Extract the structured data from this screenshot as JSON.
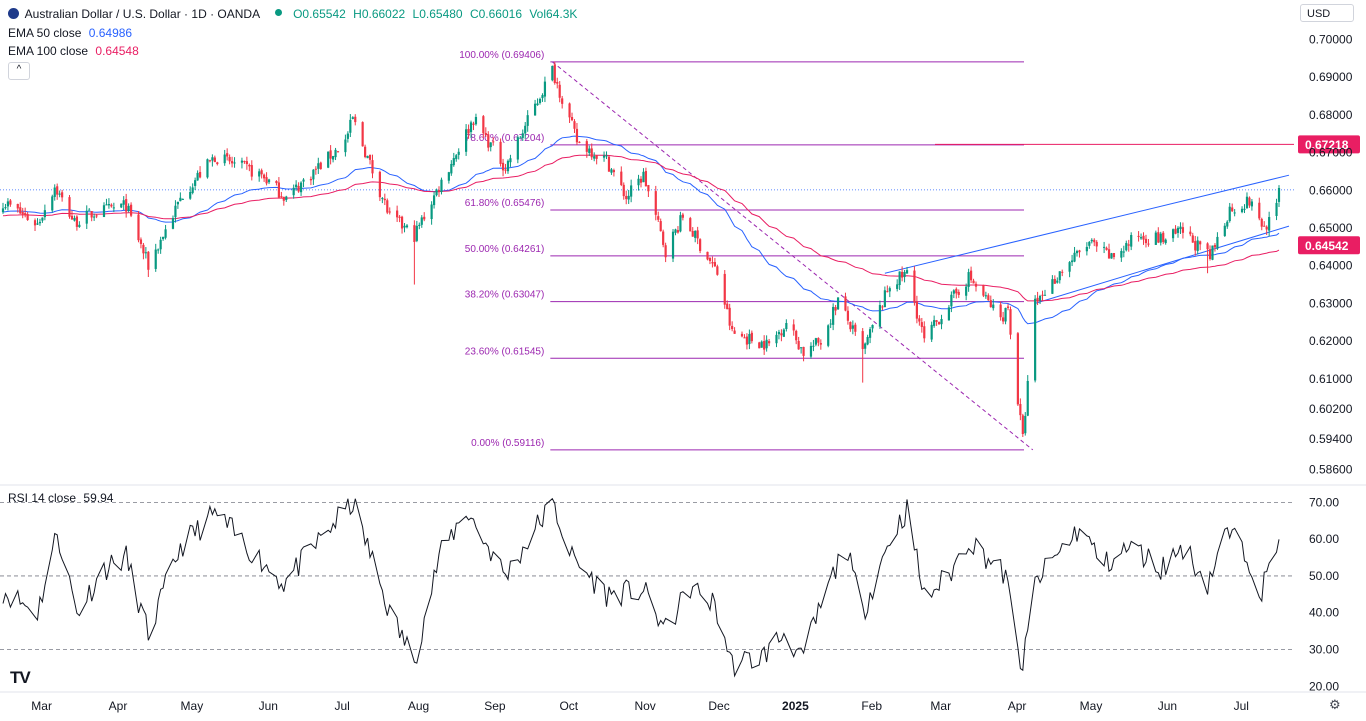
{
  "header": {
    "symbol_title": "Australian Dollar / U.S. Dollar · 1D · OANDA",
    "ohlc": {
      "o": "O0.65542",
      "h": "H0.66022",
      "l": "L0.65480",
      "c": "C0.66016"
    },
    "volume": "Vol64.3K",
    "currency": "USD",
    "collapse_glyph": "^",
    "indicators": [
      {
        "label": "EMA 50 close",
        "value": "0.64986",
        "color": "#2962ff"
      },
      {
        "label": "EMA 100 close",
        "value": "0.64548",
        "color": "#e91e63"
      }
    ]
  },
  "rsi_header": {
    "label": "RSI 14 close",
    "value": "59.94"
  },
  "colors": {
    "up": "#089981",
    "down": "#f23645",
    "ema50": "#2962ff",
    "ema100": "#e91e63",
    "fib": "#9c27b0",
    "channel": "#2962ff",
    "rsi": "#131722",
    "text": "#131722",
    "axis": "#131722"
  },
  "chart_data": [
    {
      "type": "candlestick",
      "title": "Australian Dollar / U.S. Dollar · 1D · OANDA",
      "x_tick_labels": [
        "Mar",
        "Apr",
        "May",
        "Jun",
        "Jul",
        "Aug",
        "Sep",
        "Oct",
        "Nov",
        "Dec",
        "2025",
        "Feb",
        "Mar",
        "Apr",
        "May",
        "Jun",
        "Jul"
      ],
      "y_tick_labels": [
        "0.70000",
        "0.69000",
        "0.68000",
        "0.67000",
        "0.66000",
        "0.65000",
        "0.64000",
        "0.63000",
        "0.62000",
        "0.61000",
        "0.60200",
        "0.59400",
        "0.58600"
      ],
      "y_ticks": [
        0.7,
        0.69,
        0.68,
        0.67,
        0.66,
        0.65,
        0.64,
        0.63,
        0.62,
        0.61,
        0.602,
        0.594,
        0.586
      ],
      "ylim": [
        0.5845,
        0.7025
      ],
      "price_labels": [
        {
          "value": 0.67218,
          "text": "0.67218"
        },
        {
          "value": 0.64542,
          "text": "0.64542"
        }
      ],
      "fib_levels": [
        {
          "value": 0.69406,
          "text": "100.00% (0.69406)"
        },
        {
          "value": 0.67204,
          "text": "78.60% (0.67204)"
        },
        {
          "value": 0.65476,
          "text": "61.80% (0.65476)"
        },
        {
          "value": 0.64261,
          "text": "50.00% (0.64261)"
        },
        {
          "value": 0.63047,
          "text": "38.20% (0.63047)"
        },
        {
          "value": 0.61545,
          "text": "23.60% (0.61545)"
        },
        {
          "value": 0.59116,
          "text": "0.00% (0.59116)"
        }
      ],
      "close_anchors": [
        {
          "date": "2024-02-20",
          "close": 0.657
        },
        {
          "date": "2024-03-05",
          "close": 0.651
        },
        {
          "date": "2024-03-12",
          "close": 0.661
        },
        {
          "date": "2024-03-20",
          "close": 0.6515
        },
        {
          "date": "2024-03-28",
          "close": 0.654
        },
        {
          "date": "2024-04-10",
          "close": 0.656
        },
        {
          "date": "2024-04-19",
          "close": 0.64
        },
        {
          "date": "2024-05-03",
          "close": 0.659
        },
        {
          "date": "2024-05-16",
          "close": 0.669
        },
        {
          "date": "2024-06-04",
          "close": 0.664
        },
        {
          "date": "2024-06-14",
          "close": 0.658
        },
        {
          "date": "2024-07-08",
          "close": 0.673
        },
        {
          "date": "2024-07-11",
          "close": 0.679
        },
        {
          "date": "2024-07-26",
          "close": 0.653
        },
        {
          "date": "2024-08-05",
          "close": 0.648
        },
        {
          "date": "2024-08-15",
          "close": 0.661
        },
        {
          "date": "2024-08-29",
          "close": 0.679
        },
        {
          "date": "2024-09-11",
          "close": 0.666
        },
        {
          "date": "2024-09-30",
          "close": 0.692
        },
        {
          "date": "2024-10-10",
          "close": 0.673
        },
        {
          "date": "2024-10-22",
          "close": 0.668
        },
        {
          "date": "2024-10-30",
          "close": 0.658
        },
        {
          "date": "2024-11-06",
          "close": 0.664
        },
        {
          "date": "2024-11-15",
          "close": 0.644
        },
        {
          "date": "2024-11-22",
          "close": 0.653
        },
        {
          "date": "2024-12-06",
          "close": 0.638
        },
        {
          "date": "2024-12-12",
          "close": 0.622
        },
        {
          "date": "2024-12-27",
          "close": 0.619
        },
        {
          "date": "2025-01-03",
          "close": 0.625
        },
        {
          "date": "2025-01-10",
          "close": 0.617
        },
        {
          "date": "2025-01-17",
          "close": 0.62
        },
        {
          "date": "2025-01-24",
          "close": 0.631
        },
        {
          "date": "2025-02-03",
          "close": 0.617
        },
        {
          "date": "2025-02-14",
          "close": 0.635
        },
        {
          "date": "2025-02-21",
          "close": 0.638
        },
        {
          "date": "2025-02-28",
          "close": 0.62
        },
        {
          "date": "2025-03-10",
          "close": 0.63
        },
        {
          "date": "2025-03-18",
          "close": 0.637
        },
        {
          "date": "2025-03-31",
          "close": 0.626
        },
        {
          "date": "2025-04-03",
          "close": 0.629
        },
        {
          "date": "2025-04-07",
          "close": 0.604
        },
        {
          "date": "2025-04-09",
          "close": 0.594
        },
        {
          "date": "2025-04-14",
          "close": 0.63
        },
        {
          "date": "2025-04-25",
          "close": 0.639
        },
        {
          "date": "2025-05-06",
          "close": 0.646
        },
        {
          "date": "2025-05-15",
          "close": 0.642
        },
        {
          "date": "2025-05-26",
          "close": 0.648
        },
        {
          "date": "2025-06-05",
          "close": 0.647
        },
        {
          "date": "2025-06-13",
          "close": 0.649
        },
        {
          "date": "2025-06-24",
          "close": 0.642
        },
        {
          "date": "2025-07-02",
          "close": 0.655
        },
        {
          "date": "2025-07-10",
          "close": 0.657
        },
        {
          "date": "2025-07-16",
          "close": 0.65
        },
        {
          "date": "2025-07-21",
          "close": 0.655
        },
        {
          "date": "2025-07-22",
          "close": 0.6601
        }
      ],
      "wick_spikes": [
        {
          "date": "2024-04-19",
          "low": 0.637
        },
        {
          "date": "2024-08-05",
          "low": 0.635
        },
        {
          "date": "2025-02-03",
          "low": 0.609
        },
        {
          "date": "2025-06-23",
          "low": 0.638
        }
      ],
      "trendlines": [
        {
          "style": "dashed",
          "from": [
            "2024-09-30",
            0.69406
          ],
          "to": [
            "2025-04-09",
            0.59116
          ]
        },
        {
          "style": "solid",
          "from": [
            "2025-02-12",
            0.638
          ],
          "to": [
            "2025-07-22",
            0.664
          ]
        },
        {
          "style": "solid",
          "from": [
            "2025-04-14",
            0.63
          ],
          "to": [
            "2025-07-22",
            0.6505
          ]
        }
      ]
    },
    {
      "type": "line",
      "title": "RSI 14 close",
      "y_tick_labels": [
        "70.00",
        "60.00",
        "50.00",
        "40.00",
        "30.00",
        "20.00"
      ],
      "y_ticks": [
        70,
        60,
        50,
        40,
        30,
        20
      ],
      "ylim": [
        19,
        72
      ],
      "reference_lines": [
        70,
        50,
        30
      ],
      "anchors": [
        {
          "date": "2024-02-20",
          "v": 46
        },
        {
          "date": "2024-03-05",
          "v": 40
        },
        {
          "date": "2024-03-13",
          "v": 62
        },
        {
          "date": "2024-03-21",
          "v": 40
        },
        {
          "date": "2024-04-01",
          "v": 52
        },
        {
          "date": "2024-04-10",
          "v": 55
        },
        {
          "date": "2024-04-19",
          "v": 34
        },
        {
          "date": "2024-05-02",
          "v": 58
        },
        {
          "date": "2024-05-16",
          "v": 67
        },
        {
          "date": "2024-06-04",
          "v": 54
        },
        {
          "date": "2024-06-13",
          "v": 48
        },
        {
          "date": "2024-07-03",
          "v": 64
        },
        {
          "date": "2024-07-11",
          "v": 70
        },
        {
          "date": "2024-07-26",
          "v": 40
        },
        {
          "date": "2024-08-05",
          "v": 27
        },
        {
          "date": "2024-08-15",
          "v": 55
        },
        {
          "date": "2024-08-26",
          "v": 68
        },
        {
          "date": "2024-09-11",
          "v": 50
        },
        {
          "date": "2024-09-30",
          "v": 70
        },
        {
          "date": "2024-10-08",
          "v": 55
        },
        {
          "date": "2024-10-22",
          "v": 45
        },
        {
          "date": "2024-11-06",
          "v": 46
        },
        {
          "date": "2024-11-15",
          "v": 35
        },
        {
          "date": "2024-11-25",
          "v": 47
        },
        {
          "date": "2024-12-05",
          "v": 42
        },
        {
          "date": "2024-12-12",
          "v": 26
        },
        {
          "date": "2024-12-24",
          "v": 28
        },
        {
          "date": "2025-01-03",
          "v": 35
        },
        {
          "date": "2025-01-09",
          "v": 27
        },
        {
          "date": "2025-01-20",
          "v": 47
        },
        {
          "date": "2025-01-27",
          "v": 58
        },
        {
          "date": "2025-02-03",
          "v": 40
        },
        {
          "date": "2025-02-14",
          "v": 60
        },
        {
          "date": "2025-02-21",
          "v": 68
        },
        {
          "date": "2025-02-28",
          "v": 44
        },
        {
          "date": "2025-03-10",
          "v": 50
        },
        {
          "date": "2025-03-18",
          "v": 60
        },
        {
          "date": "2025-04-02",
          "v": 50
        },
        {
          "date": "2025-04-07",
          "v": 30
        },
        {
          "date": "2025-04-09",
          "v": 25
        },
        {
          "date": "2025-04-14",
          "v": 48
        },
        {
          "date": "2025-04-22",
          "v": 55
        },
        {
          "date": "2025-05-02",
          "v": 63
        },
        {
          "date": "2025-05-12",
          "v": 53
        },
        {
          "date": "2025-05-23",
          "v": 58
        },
        {
          "date": "2025-06-04",
          "v": 52
        },
        {
          "date": "2025-06-13",
          "v": 58
        },
        {
          "date": "2025-06-23",
          "v": 48
        },
        {
          "date": "2025-07-01",
          "v": 62
        },
        {
          "date": "2025-07-09",
          "v": 56
        },
        {
          "date": "2025-07-15",
          "v": 46
        },
        {
          "date": "2025-07-22",
          "v": 59.94
        }
      ]
    }
  ]
}
